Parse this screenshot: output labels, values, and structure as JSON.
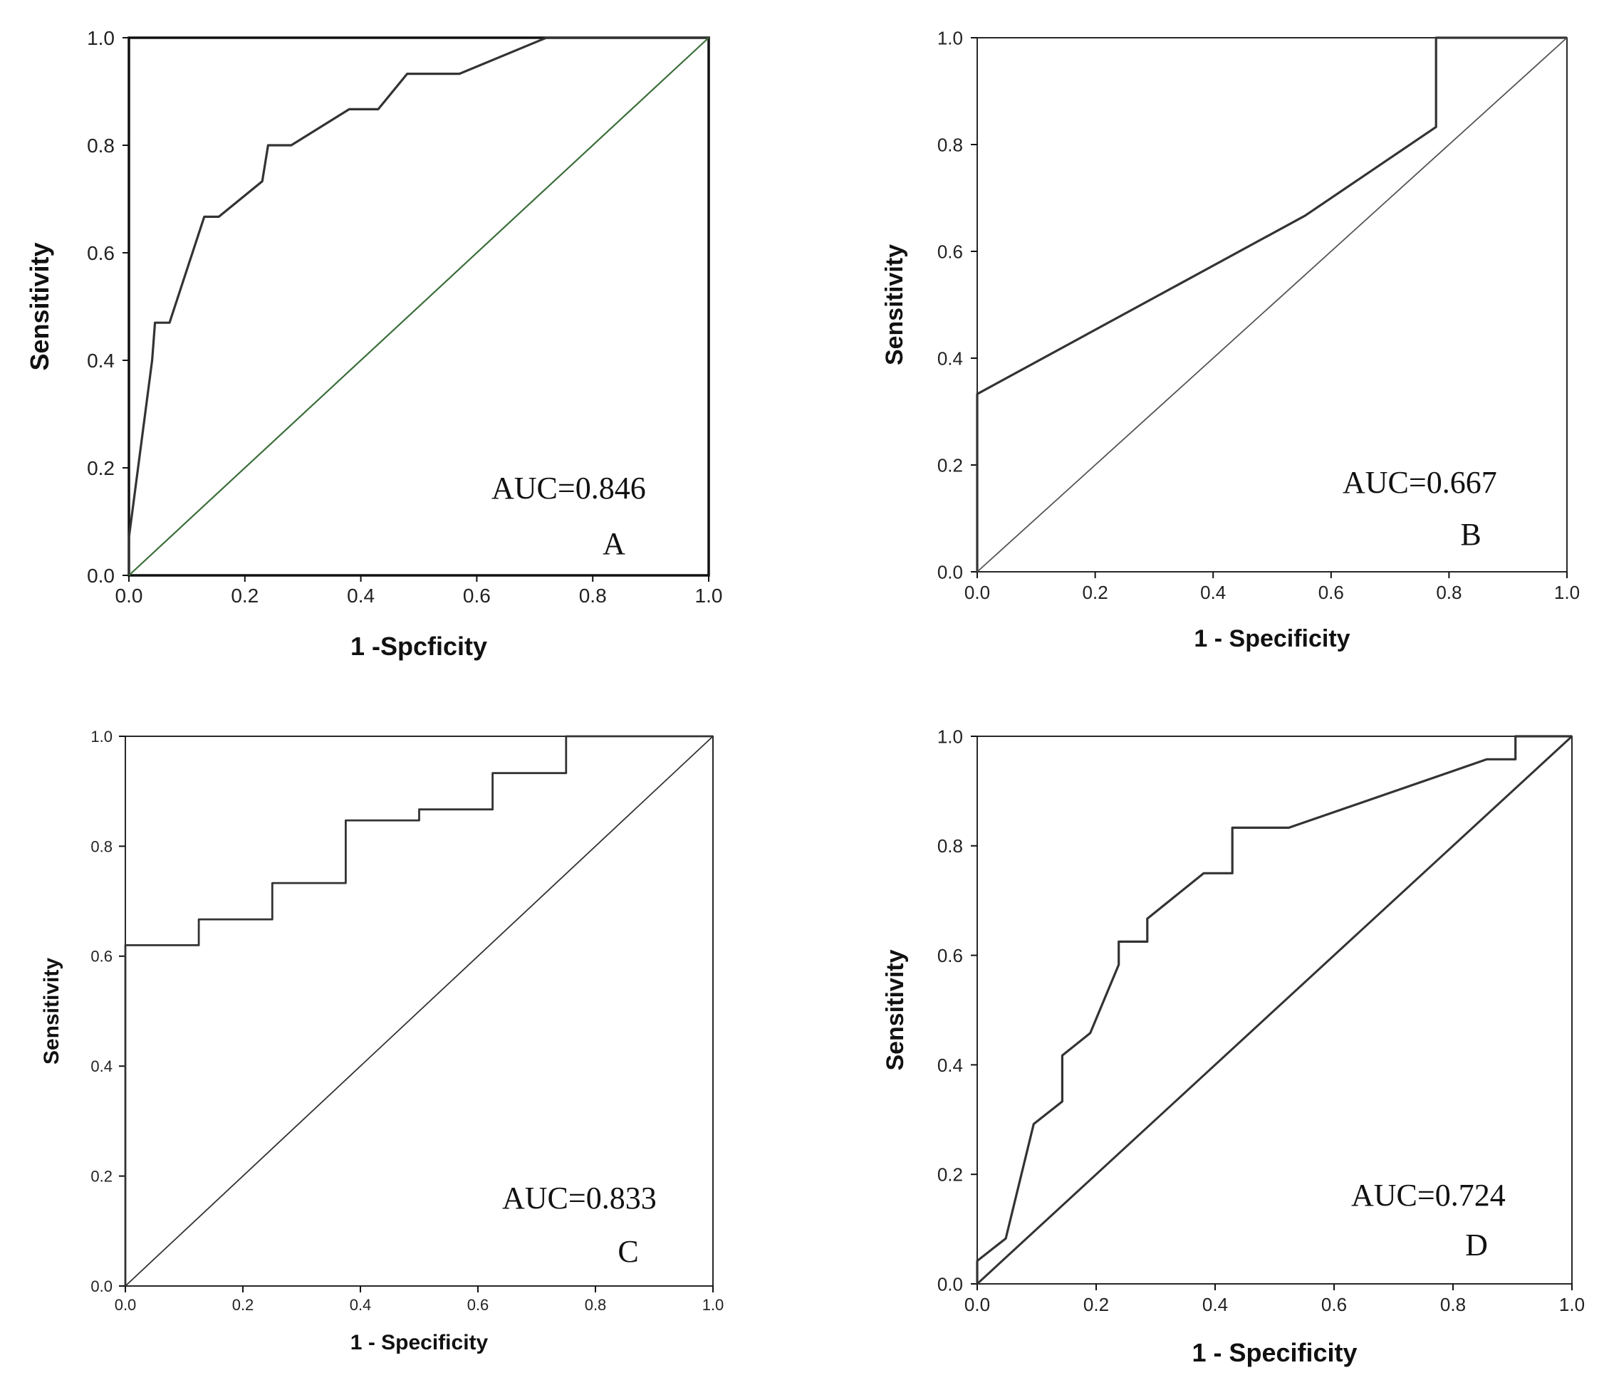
{
  "chart_data": [
    {
      "type": "line",
      "panel_label": "A",
      "auc_label": "AUC=0.846",
      "xlabel": "1 -Spcficity",
      "ylabel": "Sensitivity",
      "xlim": [
        0,
        1
      ],
      "ylim": [
        0,
        1
      ],
      "xticks": [
        "0.0",
        "0.2",
        "0.4",
        "0.6",
        "0.8",
        "1.0"
      ],
      "yticks": [
        "0.0",
        "0.2",
        "0.4",
        "0.6",
        "0.8",
        "1.0"
      ],
      "grid": false,
      "colors": {
        "roc": "#333333",
        "reference": "#3a6e3a"
      },
      "series": [
        {
          "name": "ROC",
          "x": [
            0,
            0,
            0.04,
            0.045,
            0.07,
            0.13,
            0.155,
            0.23,
            0.24,
            0.28,
            0.38,
            0.43,
            0.48,
            0.57,
            0.72,
            1.0
          ],
          "y": [
            0,
            0.07,
            0.4,
            0.47,
            0.47,
            0.667,
            0.667,
            0.733,
            0.8,
            0.8,
            0.867,
            0.867,
            0.933,
            0.933,
            1.0,
            1.0
          ]
        },
        {
          "name": "Reference",
          "x": [
            0,
            1
          ],
          "y": [
            0,
            1
          ]
        }
      ]
    },
    {
      "type": "line",
      "panel_label": "B",
      "auc_label": "AUC=0.667",
      "xlabel": "1 - Specificity",
      "ylabel": "Sensitivity",
      "xlim": [
        0,
        1
      ],
      "ylim": [
        0,
        1
      ],
      "xticks": [
        "0.0",
        "0.2",
        "0.4",
        "0.6",
        "0.8",
        "1.0"
      ],
      "yticks": [
        "0.0",
        "0.2",
        "0.4",
        "0.6",
        "0.8",
        "1.0"
      ],
      "grid": false,
      "colors": {
        "roc": "#333333",
        "reference": "#555555"
      },
      "series": [
        {
          "name": "ROC",
          "x": [
            0,
            0,
            0.556,
            0.778,
            0.778,
            1.0
          ],
          "y": [
            0,
            0.333,
            0.667,
            0.833,
            1.0,
            1.0
          ]
        },
        {
          "name": "Reference",
          "x": [
            0,
            1
          ],
          "y": [
            0,
            1
          ]
        }
      ]
    },
    {
      "type": "line",
      "panel_label": "C",
      "auc_label": "AUC=0.833",
      "xlabel": "1 - Specificity",
      "ylabel": "Sensitivity",
      "xlim": [
        0,
        1
      ],
      "ylim": [
        0,
        1
      ],
      "xticks": [
        "0.0",
        "0.2",
        "0.4",
        "0.6",
        "0.8",
        "1.0"
      ],
      "yticks": [
        "0.0",
        "0.2",
        "0.4",
        "0.6",
        "0.8",
        "1.0"
      ],
      "grid": false,
      "colors": {
        "roc": "#333333",
        "reference": "#333333"
      },
      "series": [
        {
          "name": "ROC",
          "x": [
            0,
            0,
            0.125,
            0.125,
            0.25,
            0.25,
            0.375,
            0.375,
            0.5,
            0.5,
            0.625,
            0.625,
            0.75,
            0.75,
            1.0
          ],
          "y": [
            0,
            0.62,
            0.62,
            0.667,
            0.667,
            0.733,
            0.733,
            0.847,
            0.847,
            0.867,
            0.867,
            0.933,
            0.933,
            1.0,
            1.0
          ]
        },
        {
          "name": "Reference",
          "x": [
            0,
            1
          ],
          "y": [
            0,
            1
          ]
        }
      ]
    },
    {
      "type": "line",
      "panel_label": "D",
      "auc_label": "AUC=0.724",
      "xlabel": "1 - Specificity",
      "ylabel": "Sensitivity",
      "xlim": [
        0,
        1
      ],
      "ylim": [
        0,
        1
      ],
      "xticks": [
        "0.0",
        "0.2",
        "0.4",
        "0.6",
        "0.8",
        "1.0"
      ],
      "yticks": [
        "0.0",
        "0.2",
        "0.4",
        "0.6",
        "0.8",
        "1.0"
      ],
      "grid": false,
      "colors": {
        "roc": "#333333",
        "reference": "#333333"
      },
      "series": [
        {
          "name": "ROC",
          "x": [
            0,
            0,
            0.048,
            0.095,
            0.143,
            0.143,
            0.19,
            0.238,
            0.238,
            0.286,
            0.286,
            0.381,
            0.429,
            0.429,
            0.524,
            0.857,
            0.905,
            0.905,
            1.0
          ],
          "y": [
            0,
            0.042,
            0.083,
            0.292,
            0.333,
            0.417,
            0.458,
            0.583,
            0.625,
            0.625,
            0.667,
            0.75,
            0.75,
            0.833,
            0.833,
            0.958,
            0.958,
            1.0,
            1.0
          ]
        },
        {
          "name": "Reference",
          "x": [
            0,
            1
          ],
          "y": [
            0,
            1
          ]
        }
      ]
    }
  ]
}
